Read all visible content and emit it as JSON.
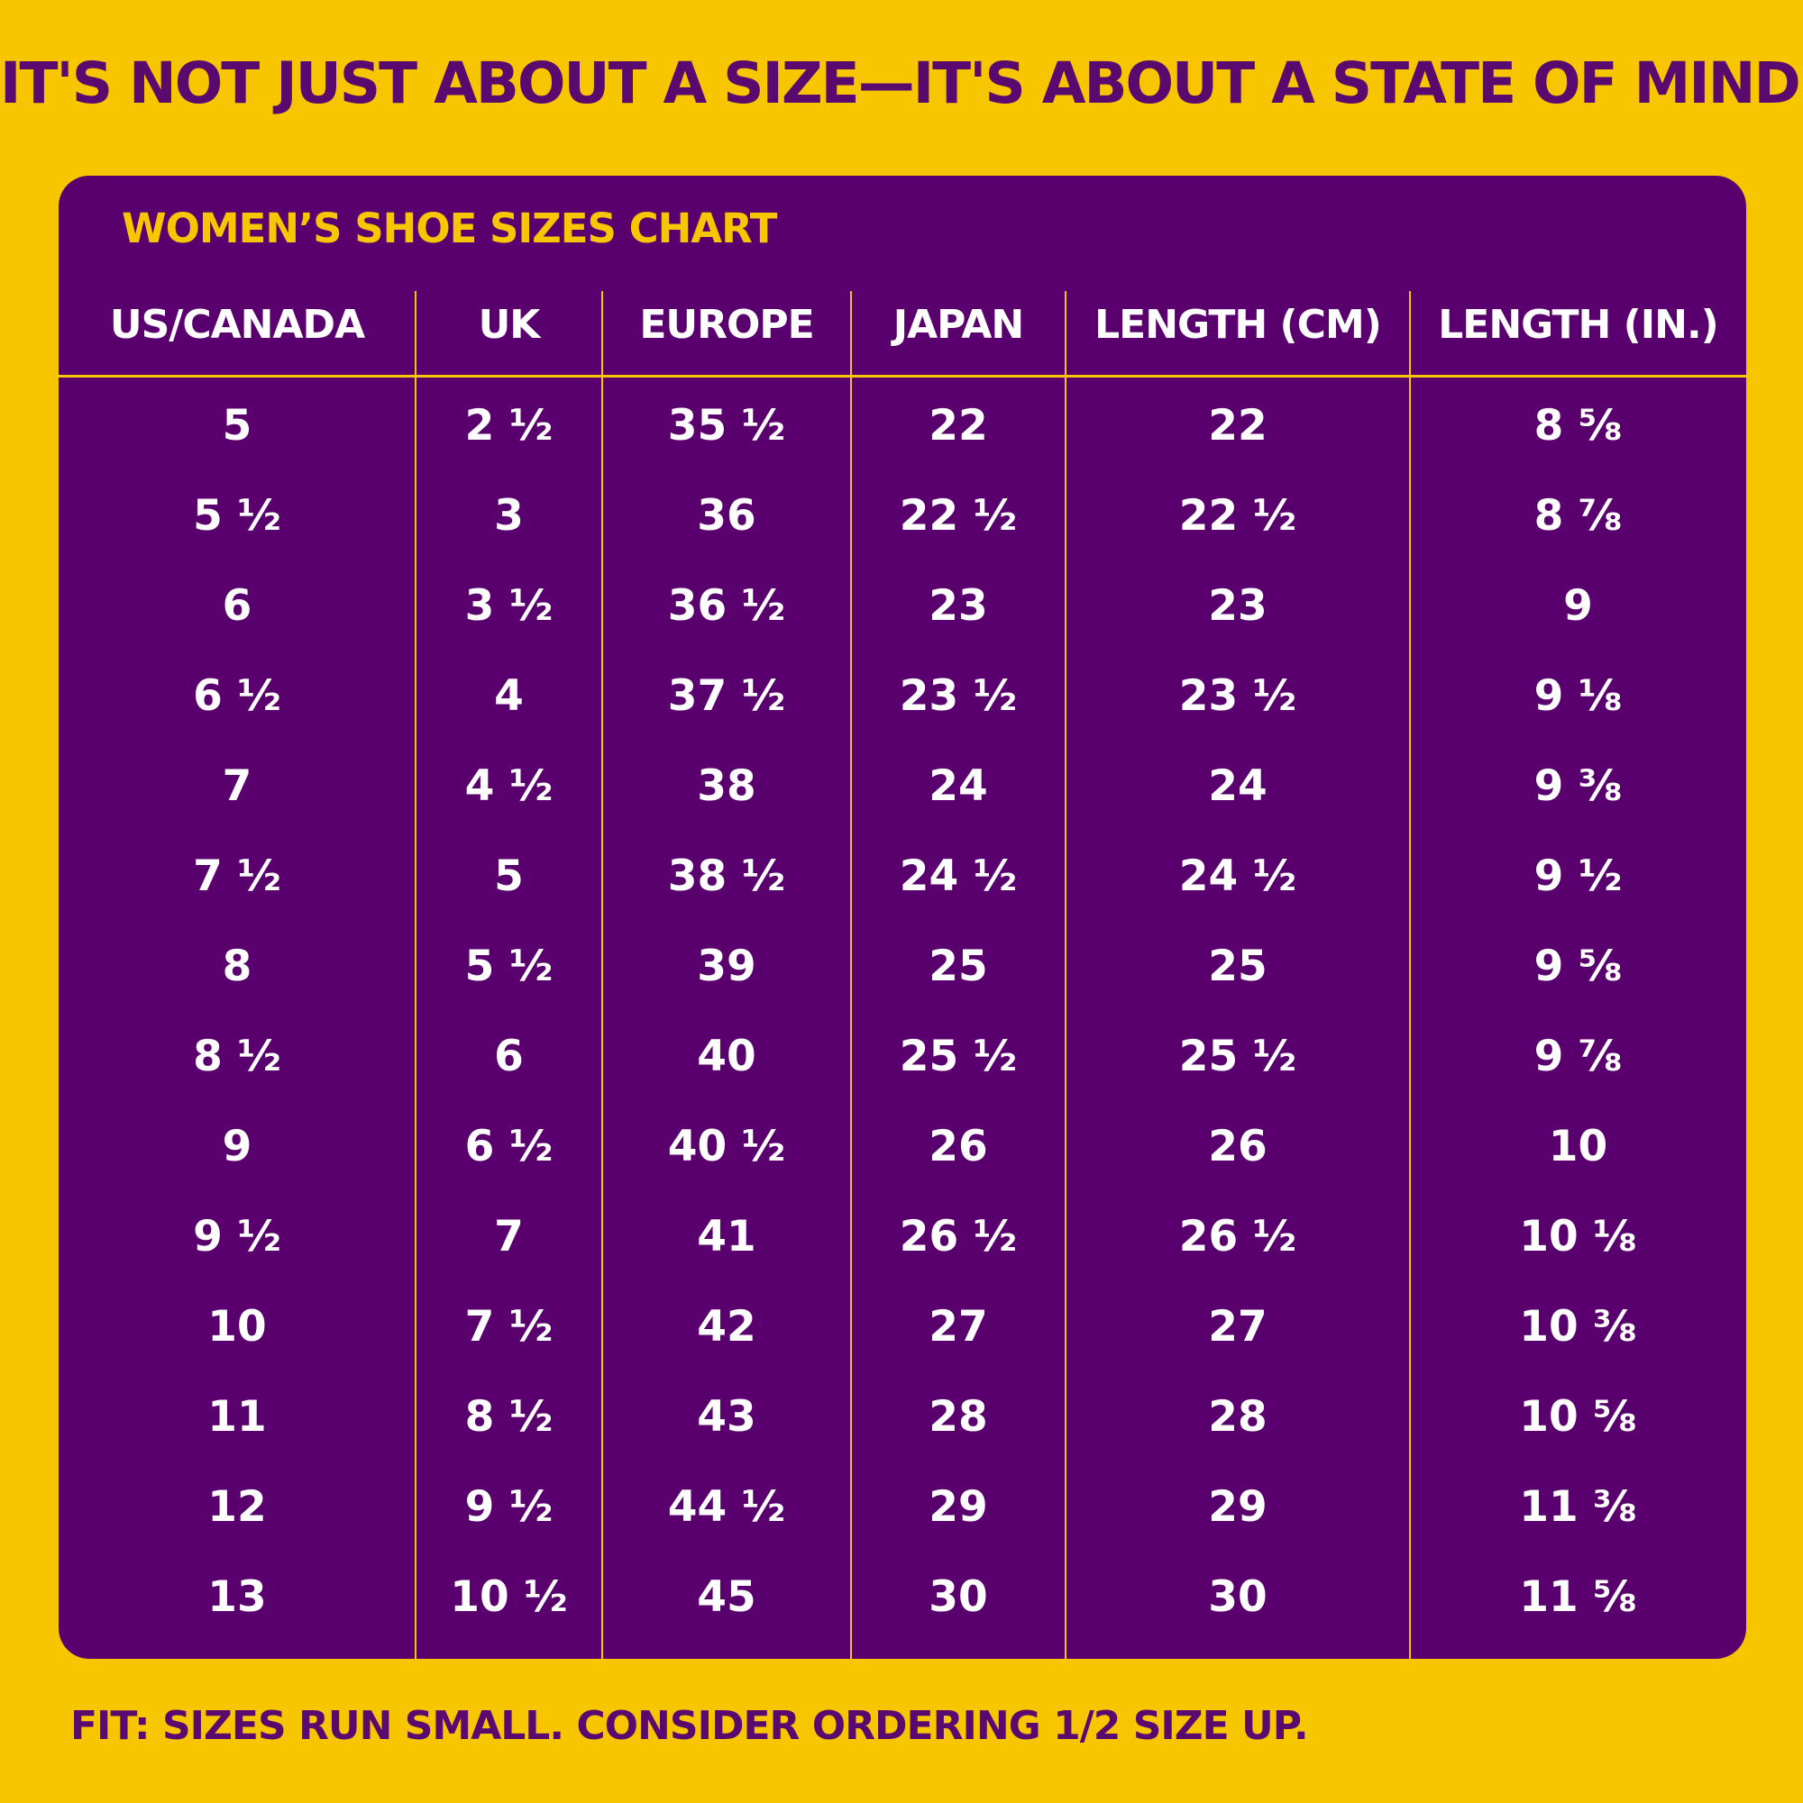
{
  "headline": "IT'S NOT JUST ABOUT A SIZE—IT'S ABOUT A STATE OF MIND!",
  "chart": {
    "title": "WOMEN’S SHOE SIZES CHART",
    "headers": [
      "US/CANADA",
      "UK",
      "EUROPE",
      "JAPAN",
      "LENGTH (CM)",
      "LENGTH (IN.)"
    ],
    "rows": [
      [
        "5",
        "2 ½",
        "35 ½",
        "22",
        "22",
        "8 ⅝"
      ],
      [
        "5 ½",
        "3",
        "36",
        "22 ½",
        "22 ½",
        "8 ⅞"
      ],
      [
        "6",
        "3 ½",
        "36 ½",
        "23",
        "23",
        "9"
      ],
      [
        "6 ½",
        "4",
        "37 ½",
        "23 ½",
        "23 ½",
        "9 ⅛"
      ],
      [
        "7",
        "4 ½",
        "38",
        "24",
        "24",
        "9 ⅜"
      ],
      [
        "7 ½",
        "5",
        "38 ½",
        "24 ½",
        "24 ½",
        "9 ½"
      ],
      [
        "8",
        "5 ½",
        "39",
        "25",
        "25",
        "9 ⅝"
      ],
      [
        "8 ½",
        "6",
        "40",
        "25 ½",
        "25 ½",
        "9 ⅞"
      ],
      [
        "9",
        "6 ½",
        "40 ½",
        "26",
        "26",
        "10"
      ],
      [
        "9 ½",
        "7",
        "41",
        "26 ½",
        "26 ½",
        "10 ⅛"
      ],
      [
        "10",
        "7 ½",
        "42",
        "27",
        "27",
        "10 ⅜"
      ],
      [
        "11",
        "8 ½",
        "43",
        "28",
        "28",
        "10 ⅝"
      ],
      [
        "12",
        "9 ½",
        "44 ½",
        "29",
        "29",
        "11 ⅜"
      ],
      [
        "13",
        "10 ½",
        "45",
        "30",
        "30",
        "11 ⅝"
      ]
    ]
  },
  "fit_note": "FIT: SIZES RUN SMALL. CONSIDER ORDERING 1/2 SIZE UP.",
  "colors": {
    "background": "#F7C600",
    "panel": "#5A006E",
    "accent_text": "#F7C600",
    "cell_text": "#FFFFFF",
    "headline_text": "#5A0A6E"
  }
}
